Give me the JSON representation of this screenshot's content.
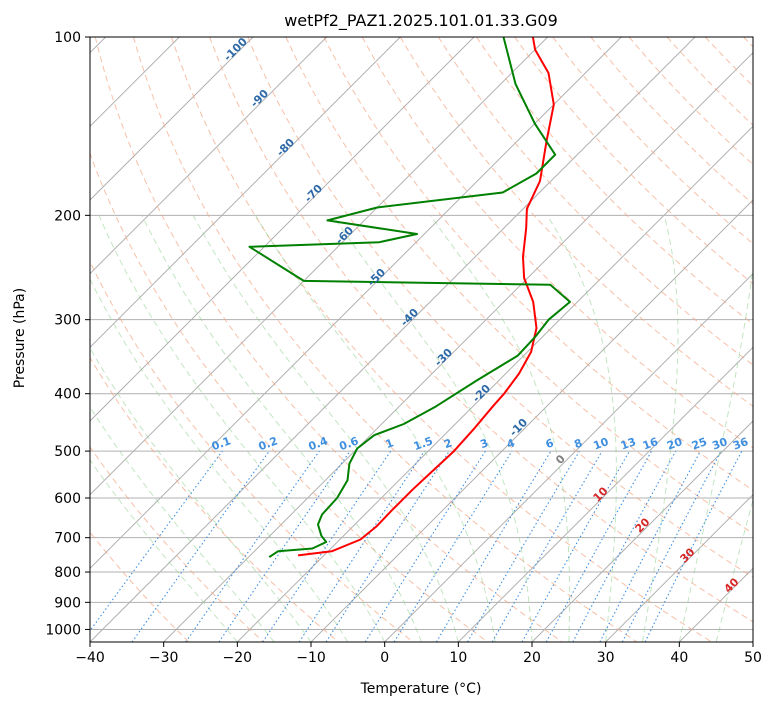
{
  "chart_data": {
    "type": "line",
    "title": "wetPf2_PAZ1.2025.101.01.33.G09",
    "xlabel": "Temperature (°C)",
    "ylabel": "Pressure (hPa)",
    "xlim": [
      -40,
      50
    ],
    "ylim": [
      1050,
      100
    ],
    "y_scale": "log",
    "grid": true,
    "skew": "skew-T log-P",
    "x_ticks": [
      -40,
      -30,
      -20,
      -10,
      0,
      10,
      20,
      30,
      40,
      50
    ],
    "y_ticks": [
      100,
      200,
      300,
      400,
      500,
      600,
      700,
      800,
      900,
      1000
    ],
    "series": [
      {
        "color": "#ff0000",
        "points": [
          [
            -23.5,
            750
          ],
          [
            -19.5,
            738
          ],
          [
            -17.2,
            705
          ],
          [
            -16.8,
            670
          ],
          [
            -16.9,
            630
          ],
          [
            -16.9,
            580
          ],
          [
            -16.7,
            540
          ],
          [
            -16.5,
            500
          ],
          [
            -16.8,
            460
          ],
          [
            -17.3,
            420
          ],
          [
            -17.5,
            400
          ],
          [
            -18.2,
            370
          ],
          [
            -19.5,
            340
          ],
          [
            -22.0,
            310
          ],
          [
            -26.0,
            280
          ],
          [
            -30.5,
            255
          ],
          [
            -33.5,
            235
          ],
          [
            -37.0,
            210
          ],
          [
            -39.5,
            195
          ],
          [
            -41.5,
            175
          ],
          [
            -46.0,
            150
          ],
          [
            -50.0,
            130
          ],
          [
            -55.0,
            115
          ],
          [
            -60.0,
            105
          ],
          [
            -62.0,
            100
          ]
        ]
      },
      {
        "color": "#008000",
        "points": [
          [
            -27.2,
            755
          ],
          [
            -26.8,
            738
          ],
          [
            -22.5,
            730
          ],
          [
            -21.5,
            712
          ],
          [
            -23.0,
            695
          ],
          [
            -25.0,
            665
          ],
          [
            -25.8,
            640
          ],
          [
            -26.0,
            600
          ],
          [
            -27.0,
            560
          ],
          [
            -29.0,
            525
          ],
          [
            -30.0,
            495
          ],
          [
            -29.5,
            470
          ],
          [
            -27.0,
            450
          ],
          [
            -25.0,
            420
          ],
          [
            -23.0,
            380
          ],
          [
            -20.8,
            345
          ],
          [
            -21.0,
            320
          ],
          [
            -21.5,
            300
          ],
          [
            -21.0,
            280
          ],
          [
            -26.0,
            262
          ],
          [
            -60.0,
            258
          ],
          [
            -72.0,
            226
          ],
          [
            -55.0,
            222
          ],
          [
            -51.0,
            215
          ],
          [
            -65.0,
            204
          ],
          [
            -60.0,
            194
          ],
          [
            -45.0,
            183
          ],
          [
            -43.0,
            170
          ],
          [
            -43.0,
            158
          ],
          [
            -50.0,
            140
          ],
          [
            -58.0,
            120
          ],
          [
            -66.0,
            100
          ]
        ]
      }
    ],
    "dry_adiabat_labels": [
      "-100",
      "-90",
      "-80",
      "-70",
      "-60",
      "-50",
      "-40",
      "-30",
      "-20",
      "-10",
      "0",
      "10",
      "20",
      "30",
      "40"
    ],
    "mixing_ratio_labels": [
      "0.1",
      "0.2",
      "0.4",
      "0.6",
      "1",
      "1.5",
      "2",
      "3",
      "4",
      "6",
      "8",
      "10",
      "13",
      "16",
      "20",
      "25",
      "30",
      "36"
    ]
  }
}
